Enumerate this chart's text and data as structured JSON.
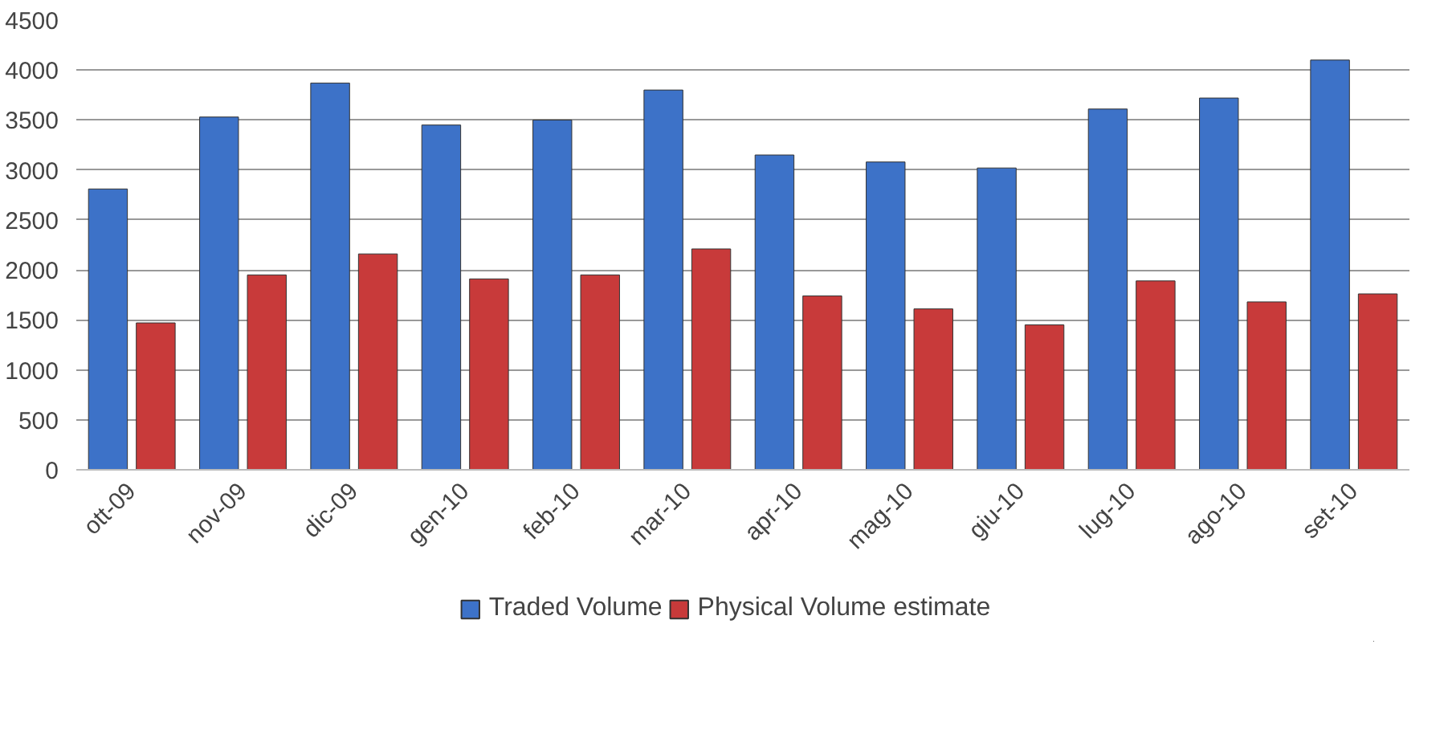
{
  "chart_data": {
    "type": "bar",
    "categories": [
      "ott-09",
      "nov-09",
      "dic-09",
      "gen-10",
      "feb-10",
      "mar-10",
      "apr-10",
      "mag-10",
      "giu-10",
      "lug-10",
      "ago-10",
      "set-10"
    ],
    "series": [
      {
        "name": "Traded Volume",
        "color": "#3d72c8",
        "values": [
          2810,
          3530,
          3870,
          3450,
          3500,
          3800,
          3150,
          3080,
          3020,
          3610,
          3720,
          4100
        ]
      },
      {
        "name": "Physical Volume estimate",
        "color": "#c83a3a",
        "values": [
          1470,
          1950,
          2160,
          1910,
          1950,
          2210,
          1740,
          1610,
          1450,
          1890,
          1680,
          1760
        ]
      }
    ],
    "ylim": [
      0,
      4500
    ],
    "yticks": [
      0,
      500,
      1000,
      1500,
      2000,
      2500,
      3000,
      3500,
      4000,
      4500
    ],
    "grid": "y",
    "legend": "bottom"
  }
}
